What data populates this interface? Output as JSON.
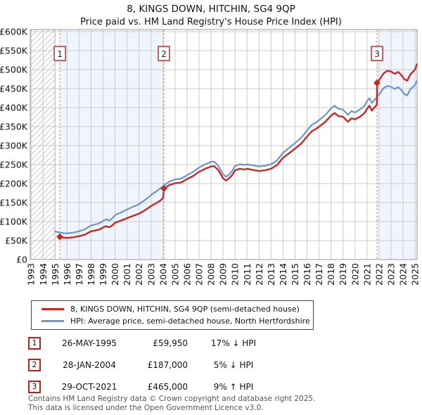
{
  "title": "8, KINGS DOWN, HITCHIN, SG4 9QP",
  "subtitle": "Price paid vs. HM Land Registry's House Price Index (HPI)",
  "legend": [
    {
      "label": "8, KINGS DOWN, HITCHIN, SG4 9QP (semi-detached house)",
      "color": "#c42a28"
    },
    {
      "label": "HPI: Average price, semi-detached house, North Hertfordshire",
      "color": "#6b96c8"
    }
  ],
  "sales": [
    {
      "num": "1",
      "date": "26-MAY-1995",
      "price": "£59,950",
      "hpi_diff": "17% ↓ HPI"
    },
    {
      "num": "2",
      "date": "28-JAN-2004",
      "price": "£187,000",
      "hpi_diff": "5% ↓ HPI"
    },
    {
      "num": "3",
      "date": "29-OCT-2021",
      "price": "£465,000",
      "hpi_diff": "9% ↑ HPI"
    }
  ],
  "footer": {
    "line1": "Contains HM Land Registry data © Crown copyright and database right 2025.",
    "line2": "This data is licensed under the Open Government Licence v3.0."
  },
  "chart_data": {
    "type": "line",
    "title": "8, KINGS DOWN, HITCHIN, SG4 9QP — Price paid vs. HPI",
    "x_axis": {
      "min": 1992.93,
      "max": 2025.17,
      "ticks": [
        1993,
        1994,
        1995,
        1996,
        1997,
        1998,
        1999,
        2000,
        2001,
        2002,
        2003,
        2004,
        2005,
        2006,
        2007,
        2008,
        2009,
        2010,
        2011,
        2012,
        2013,
        2014,
        2015,
        2016,
        2017,
        2018,
        2019,
        2020,
        2021,
        2022,
        2023,
        2024,
        2025
      ]
    },
    "y_axis": {
      "min": 0,
      "max": 600000,
      "tick_step": 50000,
      "tick_labels": [
        "£0",
        "£50K",
        "£100K",
        "£150K",
        "£200K",
        "£250K",
        "£300K",
        "£350K",
        "£400K",
        "£450K",
        "£500K",
        "£550K",
        "£600K"
      ]
    },
    "grid": true,
    "legend_position": "bottom",
    "colors": {
      "price_paid": "#c42a28",
      "hpi": "#6b96c8",
      "sale_line": "#f28080",
      "owned_fill": "#f0f4fc",
      "hatch": "#c9c9c9",
      "gridline": "#cccccc",
      "border": "#9a9a9a",
      "marker_box_border": "#bb2222"
    },
    "hatch_region": {
      "from": 1992.93,
      "to": 1995.0
    },
    "owned_regions": [
      [
        1995.4,
        2004.07
      ],
      [
        2021.83,
        2025.17
      ]
    ],
    "sale_events": [
      {
        "num": "1",
        "x": 1995.4,
        "y": 59950
      },
      {
        "num": "2",
        "x": 2004.07,
        "y": 187000
      },
      {
        "num": "3",
        "x": 2021.83,
        "y": 465000
      }
    ],
    "series": [
      {
        "name": "hpi",
        "color": "#6b96c8",
        "width": 2.2,
        "points": [
          [
            1995.0,
            74000
          ],
          [
            1995.25,
            72000
          ],
          [
            1995.5,
            70500
          ],
          [
            1995.75,
            69500
          ],
          [
            1996.0,
            69000
          ],
          [
            1996.3,
            70000
          ],
          [
            1996.6,
            71500
          ],
          [
            1997.0,
            74500
          ],
          [
            1997.5,
            80000
          ],
          [
            1998.0,
            90000
          ],
          [
            1998.4,
            93000
          ],
          [
            1998.7,
            95500
          ],
          [
            1999.0,
            102000
          ],
          [
            1999.25,
            106000
          ],
          [
            1999.5,
            103000
          ],
          [
            1999.75,
            108000
          ],
          [
            2000.0,
            117000
          ],
          [
            2000.5,
            124000
          ],
          [
            2001.0,
            132000
          ],
          [
            2001.5,
            139000
          ],
          [
            2002.0,
            146000
          ],
          [
            2002.5,
            157000
          ],
          [
            2003.0,
            170000
          ],
          [
            2003.5,
            181000
          ],
          [
            2003.8,
            188000
          ],
          [
            2004.1,
            196000
          ],
          [
            2004.5,
            205000
          ],
          [
            2005.0,
            211000
          ],
          [
            2005.5,
            213000
          ],
          [
            2006.0,
            222000
          ],
          [
            2006.5,
            231000
          ],
          [
            2007.0,
            242000
          ],
          [
            2007.5,
            251000
          ],
          [
            2008.0,
            257000
          ],
          [
            2008.25,
            258000
          ],
          [
            2008.6,
            247000
          ],
          [
            2009.0,
            225000
          ],
          [
            2009.25,
            218000
          ],
          [
            2009.5,
            224000
          ],
          [
            2009.75,
            233000
          ],
          [
            2010.0,
            246000
          ],
          [
            2010.4,
            251000
          ],
          [
            2010.8,
            249000
          ],
          [
            2011.0,
            251000
          ],
          [
            2011.5,
            248000
          ],
          [
            2012.0,
            245000
          ],
          [
            2012.5,
            247000
          ],
          [
            2013.0,
            251000
          ],
          [
            2013.5,
            261000
          ],
          [
            2014.0,
            281000
          ],
          [
            2014.5,
            294000
          ],
          [
            2015.0,
            307000
          ],
          [
            2015.5,
            320000
          ],
          [
            2016.0,
            340000
          ],
          [
            2016.4,
            355000
          ],
          [
            2016.8,
            362000
          ],
          [
            2017.0,
            367000
          ],
          [
            2017.5,
            380000
          ],
          [
            2018.0,
            398000
          ],
          [
            2018.3,
            405000
          ],
          [
            2018.6,
            397000
          ],
          [
            2019.0,
            395000
          ],
          [
            2019.4,
            381000
          ],
          [
            2019.7,
            391000
          ],
          [
            2020.0,
            387000
          ],
          [
            2020.4,
            395000
          ],
          [
            2020.8,
            405000
          ],
          [
            2021.0,
            417000
          ],
          [
            2021.2,
            425000
          ],
          [
            2021.4,
            412000
          ],
          [
            2021.6,
            420000
          ],
          [
            2021.83,
            427000
          ],
          [
            2022.0,
            434000
          ],
          [
            2022.4,
            452000
          ],
          [
            2022.7,
            457000
          ],
          [
            2023.0,
            455000
          ],
          [
            2023.3,
            449000
          ],
          [
            2023.6,
            454000
          ],
          [
            2023.9,
            445000
          ],
          [
            2024.1,
            436000
          ],
          [
            2024.35,
            432000
          ],
          [
            2024.6,
            448000
          ],
          [
            2024.85,
            455000
          ],
          [
            2025.0,
            460000
          ],
          [
            2025.15,
            470000
          ]
        ]
      },
      {
        "name": "price_paid",
        "color": "#c42a28",
        "width": 2.4,
        "points": [
          [
            1995.4,
            59950
          ],
          [
            1995.6,
            58500
          ],
          [
            1995.9,
            57000
          ],
          [
            1996.2,
            57500
          ],
          [
            1996.6,
            59000
          ],
          [
            1997.0,
            61500
          ],
          [
            1997.5,
            66000
          ],
          [
            1998.0,
            74500
          ],
          [
            1998.4,
            77000
          ],
          [
            1998.7,
            79000
          ],
          [
            1999.0,
            84500
          ],
          [
            1999.25,
            88000
          ],
          [
            1999.5,
            85000
          ],
          [
            1999.75,
            89500
          ],
          [
            2000.0,
            97000
          ],
          [
            2000.5,
            102500
          ],
          [
            2001.0,
            109000
          ],
          [
            2001.5,
            115000
          ],
          [
            2002.0,
            121000
          ],
          [
            2002.5,
            130000
          ],
          [
            2003.0,
            141000
          ],
          [
            2003.5,
            150000
          ],
          [
            2003.8,
            156000
          ],
          [
            2004.0,
            162000
          ],
          [
            2004.08,
            187000
          ],
          [
            2004.5,
            196000
          ],
          [
            2005.0,
            201000
          ],
          [
            2005.5,
            203000
          ],
          [
            2006.0,
            212000
          ],
          [
            2006.5,
            220000
          ],
          [
            2007.0,
            231000
          ],
          [
            2007.5,
            239000
          ],
          [
            2008.0,
            245000
          ],
          [
            2008.25,
            246000
          ],
          [
            2008.6,
            236000
          ],
          [
            2009.0,
            214000
          ],
          [
            2009.25,
            208000
          ],
          [
            2009.5,
            214000
          ],
          [
            2009.75,
            222000
          ],
          [
            2010.0,
            235000
          ],
          [
            2010.4,
            239000
          ],
          [
            2010.8,
            237000
          ],
          [
            2011.0,
            239000
          ],
          [
            2011.5,
            236000
          ],
          [
            2012.0,
            233000
          ],
          [
            2012.5,
            235000
          ],
          [
            2013.0,
            239000
          ],
          [
            2013.5,
            249000
          ],
          [
            2014.0,
            268000
          ],
          [
            2014.5,
            280000
          ],
          [
            2015.0,
            292000
          ],
          [
            2015.5,
            305000
          ],
          [
            2016.0,
            324000
          ],
          [
            2016.4,
            338000
          ],
          [
            2016.8,
            345000
          ],
          [
            2017.0,
            350000
          ],
          [
            2017.5,
            362000
          ],
          [
            2018.0,
            379000
          ],
          [
            2018.3,
            386000
          ],
          [
            2018.6,
            378000
          ],
          [
            2019.0,
            376000
          ],
          [
            2019.4,
            363000
          ],
          [
            2019.7,
            372000
          ],
          [
            2020.0,
            369000
          ],
          [
            2020.4,
            376000
          ],
          [
            2020.8,
            386000
          ],
          [
            2021.0,
            397000
          ],
          [
            2021.2,
            405000
          ],
          [
            2021.4,
            392000
          ],
          [
            2021.6,
            400000
          ],
          [
            2021.81,
            407000
          ],
          [
            2021.84,
            465000
          ],
          [
            2022.0,
            472000
          ],
          [
            2022.4,
            491000
          ],
          [
            2022.7,
            497000
          ],
          [
            2023.0,
            495000
          ],
          [
            2023.3,
            489000
          ],
          [
            2023.6,
            494000
          ],
          [
            2023.9,
            484000
          ],
          [
            2024.1,
            475000
          ],
          [
            2024.35,
            471000
          ],
          [
            2024.6,
            487000
          ],
          [
            2024.85,
            495000
          ],
          [
            2025.0,
            501000
          ],
          [
            2025.15,
            514000
          ]
        ]
      }
    ]
  }
}
